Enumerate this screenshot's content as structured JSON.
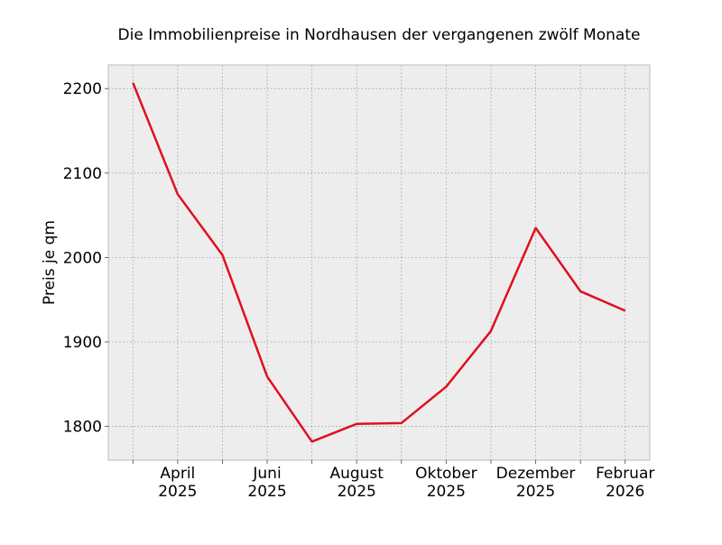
{
  "chart_data": {
    "type": "line",
    "title": "Die Immobilienpreise in Nordhausen der vergangenen zwölf Monate",
    "xlabel": "",
    "ylabel": "Preis je qm",
    "x": [
      "2025-03",
      "2025-04",
      "2025-05",
      "2025-06",
      "2025-07",
      "2025-08",
      "2025-09",
      "2025-10",
      "2025-11",
      "2025-12",
      "2026-01",
      "2026-02"
    ],
    "series": [
      {
        "name": "Preis je qm",
        "color": "#e00f1e",
        "values": [
          2207,
          2075,
          2003,
          1859,
          1782,
          1803,
          1804,
          1847,
          1913,
          2035,
          1960,
          1937
        ]
      }
    ],
    "xlim": [
      -0.55,
      11.55
    ],
    "ylim": [
      1760,
      2228
    ],
    "yticks": [
      1800,
      1900,
      2000,
      2100,
      2200
    ],
    "xtick_labels": [
      {
        "index": 1,
        "line1": "April",
        "line2": "2025"
      },
      {
        "index": 3,
        "line1": "Juni",
        "line2": "2025"
      },
      {
        "index": 5,
        "line1": "August",
        "line2": "2025"
      },
      {
        "index": 7,
        "line1": "Oktober",
        "line2": "2025"
      },
      {
        "index": 9,
        "line1": "Dezember",
        "line2": "2025"
      },
      {
        "index": 11,
        "line1": "Februar",
        "line2": "2026"
      }
    ],
    "grid": true,
    "background": "#ededed"
  }
}
